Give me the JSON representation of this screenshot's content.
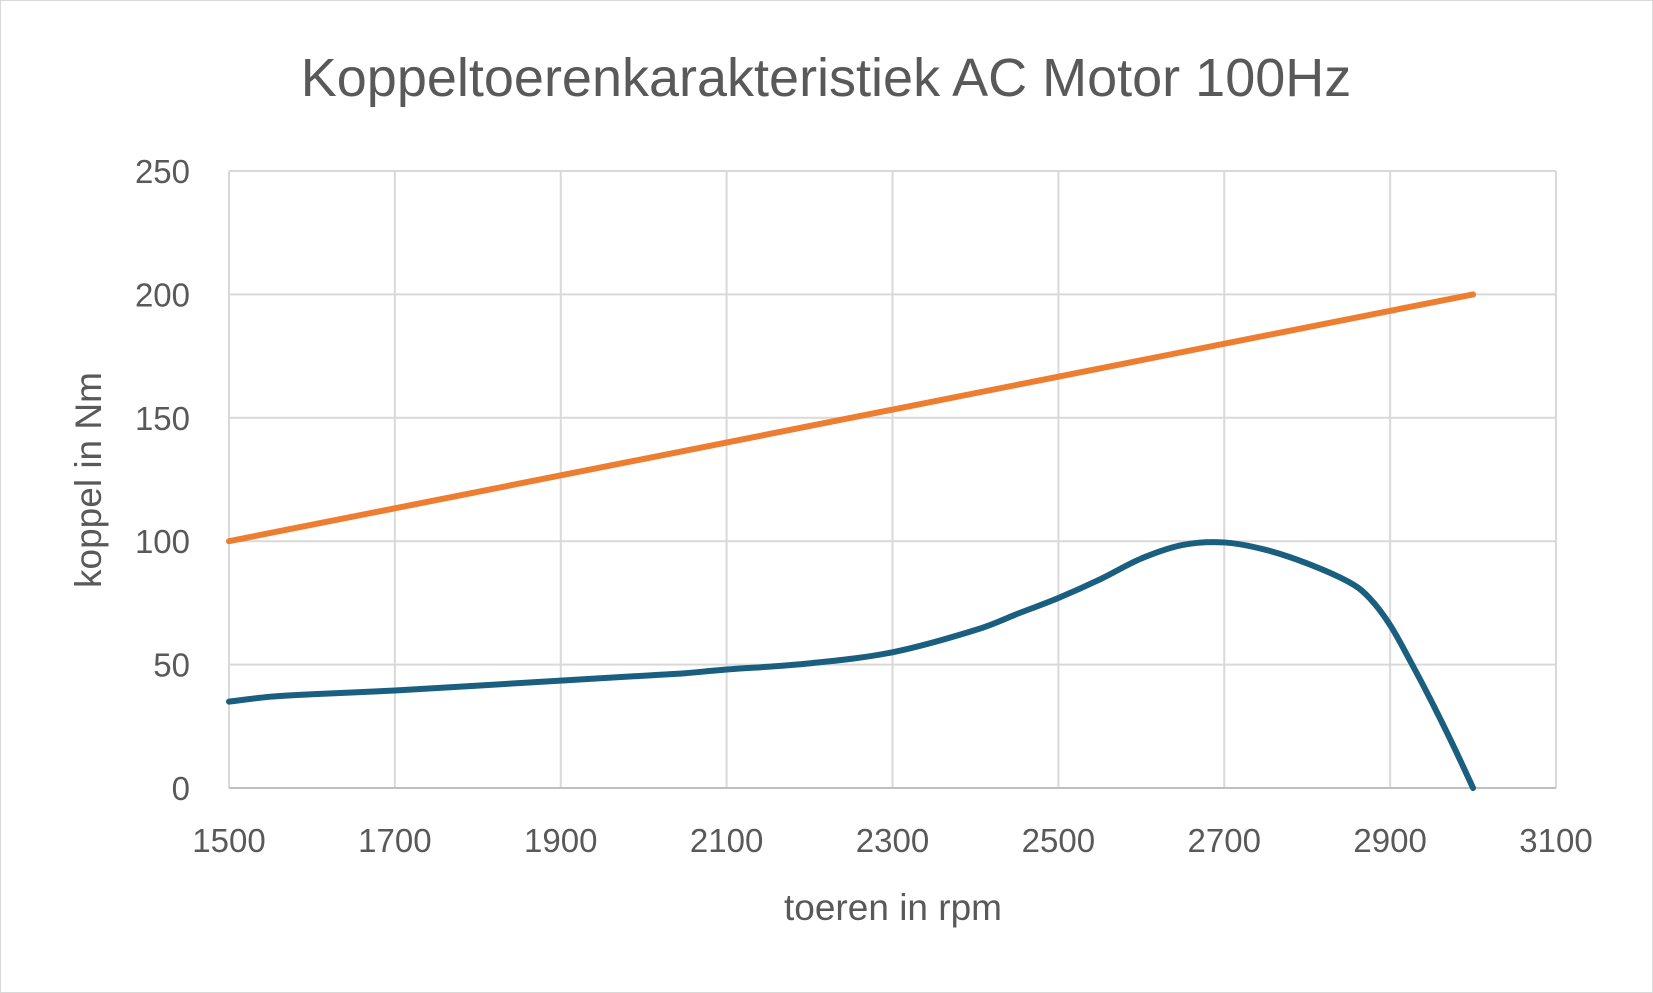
{
  "chart_data": {
    "type": "line",
    "title": "Koppeltoerenkarakteristiek AC Motor 100Hz",
    "xlabel": "toeren in rpm",
    "ylabel": "koppel in Nm",
    "xlim": [
      1500,
      3100
    ],
    "ylim": [
      0,
      250
    ],
    "x_ticks": [
      1500,
      1700,
      1900,
      2100,
      2300,
      2500,
      2700,
      2900,
      3100
    ],
    "y_ticks": [
      0,
      50,
      100,
      150,
      200,
      250
    ],
    "grid": true,
    "legend": "none",
    "series": [
      {
        "color": "#ed7d31",
        "x": [
          1500,
          3000
        ],
        "y": [
          100,
          200
        ]
      },
      {
        "color": "#1a5f7f",
        "x": [
          1500,
          1550,
          1600,
          1700,
          1800,
          1900,
          2000,
          2050,
          2100,
          2200,
          2300,
          2400,
          2450,
          2500,
          2550,
          2600,
          2650,
          2700,
          2750,
          2800,
          2850,
          2875,
          2900,
          2925,
          2950,
          2975,
          3000
        ],
        "y": [
          35,
          37,
          38,
          39.5,
          41.5,
          43.5,
          45.5,
          46.5,
          48,
          50.5,
          55,
          64,
          70.5,
          77,
          84.5,
          93,
          98.5,
          99.5,
          96.5,
          91,
          83.5,
          77,
          66,
          51,
          35,
          18,
          0
        ]
      }
    ]
  }
}
